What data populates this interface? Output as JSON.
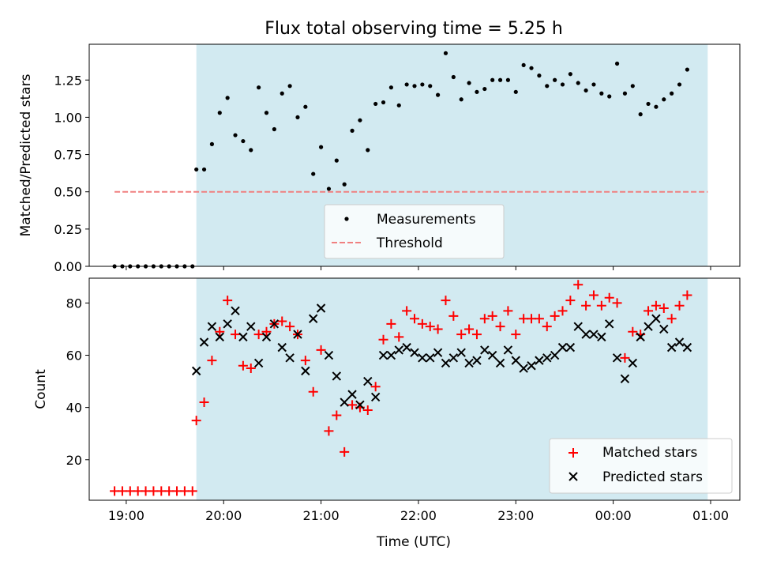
{
  "title": "Flux total observing time = 5.25 h",
  "x_tick_labels": [
    "19:00",
    "20:00",
    "21:00",
    "22:00",
    "23:00",
    "00:00",
    "01:00"
  ],
  "x_label": "Time (UTC)",
  "colors": {
    "shade": "#add8e6",
    "threshold": "#f08080",
    "measurement": "#000000",
    "matched": "#ff0000",
    "predicted": "#000000"
  },
  "chart_data": [
    {
      "type": "scatter",
      "title": "Flux total observing time = 5.25 h",
      "ylabel": "Matched/Predicted stars",
      "xlabel": "",
      "x_unit": "hours since 00:00 UTC of start night",
      "xlim": [
        18.62,
        25.3
      ],
      "ylim": [
        0,
        1.49
      ],
      "y_ticks": [
        0.0,
        0.25,
        0.5,
        0.75,
        1.0,
        1.25
      ],
      "y_tick_labels": [
        "0.00",
        "0.25",
        "0.50",
        "0.75",
        "1.00",
        "1.25"
      ],
      "shaded_interval": [
        19.72,
        24.97
      ],
      "threshold": {
        "y": 0.5,
        "x_range": [
          18.88,
          24.97
        ],
        "label": "Threshold"
      },
      "legend": {
        "position": "lower center",
        "entries": [
          "Measurements",
          "Threshold"
        ]
      },
      "series": [
        {
          "name": "Measurements",
          "points": [
            [
              18.88,
              0
            ],
            [
              18.96,
              0
            ],
            [
              19.04,
              0
            ],
            [
              19.12,
              0
            ],
            [
              19.2,
              0
            ],
            [
              19.28,
              0
            ],
            [
              19.36,
              0
            ],
            [
              19.44,
              0
            ],
            [
              19.52,
              0
            ],
            [
              19.6,
              0
            ],
            [
              19.68,
              0
            ],
            [
              19.72,
              0.65
            ],
            [
              19.8,
              0.65
            ],
            [
              19.88,
              0.82
            ],
            [
              19.96,
              1.03
            ],
            [
              20.04,
              1.13
            ],
            [
              20.12,
              0.88
            ],
            [
              20.2,
              0.84
            ],
            [
              20.28,
              0.78
            ],
            [
              20.36,
              1.2
            ],
            [
              20.44,
              1.03
            ],
            [
              20.52,
              0.92
            ],
            [
              20.6,
              1.16
            ],
            [
              20.68,
              1.21
            ],
            [
              20.76,
              1.0
            ],
            [
              20.84,
              1.07
            ],
            [
              20.92,
              0.62
            ],
            [
              21.0,
              0.8
            ],
            [
              21.08,
              0.52
            ],
            [
              21.16,
              0.71
            ],
            [
              21.24,
              0.55
            ],
            [
              21.32,
              0.91
            ],
            [
              21.4,
              0.98
            ],
            [
              21.48,
              0.78
            ],
            [
              21.56,
              1.09
            ],
            [
              21.64,
              1.1
            ],
            [
              21.72,
              1.2
            ],
            [
              21.8,
              1.08
            ],
            [
              21.88,
              1.22
            ],
            [
              21.96,
              1.21
            ],
            [
              22.04,
              1.22
            ],
            [
              22.12,
              1.21
            ],
            [
              22.2,
              1.15
            ],
            [
              22.28,
              1.43
            ],
            [
              22.36,
              1.27
            ],
            [
              22.44,
              1.12
            ],
            [
              22.52,
              1.23
            ],
            [
              22.6,
              1.17
            ],
            [
              22.68,
              1.19
            ],
            [
              22.76,
              1.25
            ],
            [
              22.84,
              1.25
            ],
            [
              22.92,
              1.25
            ],
            [
              23.0,
              1.17
            ],
            [
              23.08,
              1.35
            ],
            [
              23.16,
              1.33
            ],
            [
              23.24,
              1.28
            ],
            [
              23.32,
              1.21
            ],
            [
              23.4,
              1.25
            ],
            [
              23.48,
              1.22
            ],
            [
              23.56,
              1.29
            ],
            [
              23.64,
              1.23
            ],
            [
              23.72,
              1.18
            ],
            [
              23.8,
              1.22
            ],
            [
              23.88,
              1.16
            ],
            [
              23.96,
              1.14
            ],
            [
              24.04,
              1.36
            ],
            [
              24.12,
              1.16
            ],
            [
              24.2,
              1.21
            ],
            [
              24.28,
              1.02
            ],
            [
              24.36,
              1.09
            ],
            [
              24.44,
              1.07
            ],
            [
              24.52,
              1.12
            ],
            [
              24.6,
              1.16
            ],
            [
              24.68,
              1.22
            ],
            [
              24.76,
              1.32
            ]
          ]
        }
      ]
    },
    {
      "type": "scatter",
      "title": "",
      "ylabel": "Count",
      "xlabel": "Time (UTC)",
      "x_unit": "hours since 00:00 UTC of start night",
      "xlim": [
        18.62,
        25.3
      ],
      "ylim": [
        4.5,
        89.5
      ],
      "y_ticks": [
        20,
        40,
        60,
        80
      ],
      "y_tick_labels": [
        "20",
        "40",
        "60",
        "80"
      ],
      "x_ticks": [
        19,
        20,
        21,
        22,
        23,
        24,
        25
      ],
      "x_tick_labels": [
        "19:00",
        "20:00",
        "21:00",
        "22:00",
        "23:00",
        "00:00",
        "01:00"
      ],
      "shaded_interval": [
        19.72,
        24.97
      ],
      "legend": {
        "position": "lower right",
        "entries": [
          "Matched stars",
          "Predicted stars"
        ]
      },
      "series": [
        {
          "name": "Matched stars",
          "points": [
            [
              18.88,
              8
            ],
            [
              18.96,
              8
            ],
            [
              19.04,
              8
            ],
            [
              19.12,
              8
            ],
            [
              19.2,
              8
            ],
            [
              19.28,
              8
            ],
            [
              19.36,
              8
            ],
            [
              19.44,
              8
            ],
            [
              19.52,
              8
            ],
            [
              19.6,
              8
            ],
            [
              19.68,
              8
            ],
            [
              19.72,
              35
            ],
            [
              19.8,
              42
            ],
            [
              19.88,
              58
            ],
            [
              19.96,
              69
            ],
            [
              20.04,
              81
            ],
            [
              20.12,
              68
            ],
            [
              20.2,
              56
            ],
            [
              20.28,
              55
            ],
            [
              20.36,
              68
            ],
            [
              20.44,
              69
            ],
            [
              20.52,
              72
            ],
            [
              20.6,
              73
            ],
            [
              20.68,
              71
            ],
            [
              20.76,
              68
            ],
            [
              20.84,
              58
            ],
            [
              20.92,
              46
            ],
            [
              21.0,
              62
            ],
            [
              21.08,
              31
            ],
            [
              21.16,
              37
            ],
            [
              21.24,
              23
            ],
            [
              21.32,
              41
            ],
            [
              21.4,
              40
            ],
            [
              21.48,
              39
            ],
            [
              21.56,
              48
            ],
            [
              21.64,
              66
            ],
            [
              21.72,
              72
            ],
            [
              21.8,
              67
            ],
            [
              21.88,
              77
            ],
            [
              21.96,
              74
            ],
            [
              22.04,
              72
            ],
            [
              22.12,
              71
            ],
            [
              22.2,
              70
            ],
            [
              22.28,
              81
            ],
            [
              22.36,
              75
            ],
            [
              22.44,
              68
            ],
            [
              22.52,
              70
            ],
            [
              22.6,
              68
            ],
            [
              22.68,
              74
            ],
            [
              22.76,
              75
            ],
            [
              22.84,
              71
            ],
            [
              22.92,
              77
            ],
            [
              23.0,
              68
            ],
            [
              23.08,
              74
            ],
            [
              23.16,
              74
            ],
            [
              23.24,
              74
            ],
            [
              23.32,
              71
            ],
            [
              23.4,
              75
            ],
            [
              23.48,
              77
            ],
            [
              23.56,
              81
            ],
            [
              23.64,
              87
            ],
            [
              23.72,
              79
            ],
            [
              23.8,
              83
            ],
            [
              23.88,
              79
            ],
            [
              23.96,
              82
            ],
            [
              24.04,
              80
            ],
            [
              24.12,
              59
            ],
            [
              24.2,
              69
            ],
            [
              24.28,
              68
            ],
            [
              24.36,
              77
            ],
            [
              24.44,
              79
            ],
            [
              24.52,
              78
            ],
            [
              24.6,
              74
            ],
            [
              24.68,
              79
            ],
            [
              24.76,
              83
            ]
          ]
        },
        {
          "name": "Predicted stars",
          "points": [
            [
              19.72,
              54
            ],
            [
              19.8,
              65
            ],
            [
              19.88,
              71
            ],
            [
              19.96,
              67
            ],
            [
              20.04,
              72
            ],
            [
              20.12,
              77
            ],
            [
              20.2,
              67
            ],
            [
              20.28,
              71
            ],
            [
              20.36,
              57
            ],
            [
              20.44,
              67
            ],
            [
              20.52,
              72
            ],
            [
              20.6,
              63
            ],
            [
              20.68,
              59
            ],
            [
              20.76,
              68
            ],
            [
              20.84,
              54
            ],
            [
              20.92,
              74
            ],
            [
              21.0,
              78
            ],
            [
              21.08,
              60
            ],
            [
              21.16,
              52
            ],
            [
              21.24,
              42
            ],
            [
              21.32,
              45
            ],
            [
              21.4,
              41
            ],
            [
              21.48,
              50
            ],
            [
              21.56,
              44
            ],
            [
              21.64,
              60
            ],
            [
              21.72,
              60
            ],
            [
              21.8,
              62
            ],
            [
              21.88,
              63
            ],
            [
              21.96,
              61
            ],
            [
              22.04,
              59
            ],
            [
              22.12,
              59
            ],
            [
              22.2,
              61
            ],
            [
              22.28,
              57
            ],
            [
              22.36,
              59
            ],
            [
              22.44,
              61
            ],
            [
              22.52,
              57
            ],
            [
              22.6,
              58
            ],
            [
              22.68,
              62
            ],
            [
              22.76,
              60
            ],
            [
              22.84,
              57
            ],
            [
              22.92,
              62
            ],
            [
              23.0,
              58
            ],
            [
              23.08,
              55
            ],
            [
              23.16,
              56
            ],
            [
              23.24,
              58
            ],
            [
              23.32,
              59
            ],
            [
              23.4,
              60
            ],
            [
              23.48,
              63
            ],
            [
              23.56,
              63
            ],
            [
              23.64,
              71
            ],
            [
              23.72,
              68
            ],
            [
              23.8,
              68
            ],
            [
              23.88,
              67
            ],
            [
              23.96,
              72
            ],
            [
              24.04,
              59
            ],
            [
              24.12,
              51
            ],
            [
              24.2,
              57
            ],
            [
              24.28,
              67
            ],
            [
              24.36,
              71
            ],
            [
              24.44,
              74
            ],
            [
              24.52,
              70
            ],
            [
              24.6,
              63
            ],
            [
              24.68,
              65
            ],
            [
              24.76,
              63
            ]
          ]
        }
      ]
    }
  ]
}
